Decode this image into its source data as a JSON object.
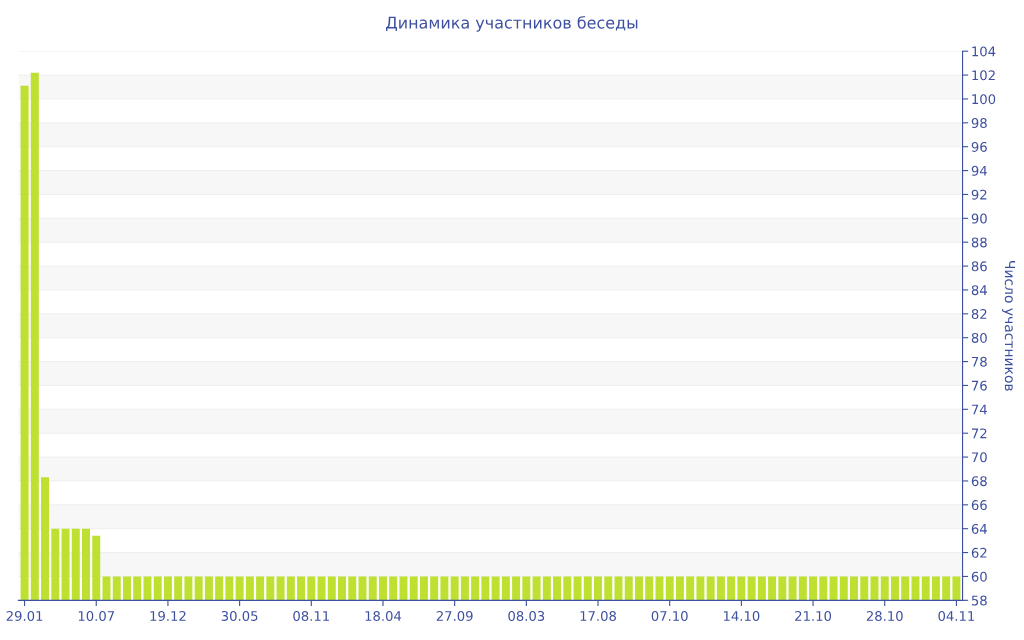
{
  "chart_data": {
    "type": "bar",
    "title": "Динамика участников беседы",
    "ylabel": "Число участников",
    "categories": [
      "29.01",
      null,
      null,
      null,
      null,
      null,
      null,
      "10.07",
      null,
      null,
      null,
      null,
      null,
      null,
      "19.12",
      null,
      null,
      null,
      null,
      null,
      null,
      "30.05",
      null,
      null,
      null,
      null,
      null,
      null,
      "08.11",
      null,
      null,
      null,
      null,
      null,
      null,
      "18.04",
      null,
      null,
      null,
      null,
      null,
      null,
      "27.09",
      null,
      null,
      null,
      null,
      null,
      null,
      "08.03",
      null,
      null,
      null,
      null,
      null,
      null,
      "17.08",
      null,
      null,
      null,
      null,
      null,
      null,
      "07.10",
      null,
      null,
      null,
      null,
      null,
      null,
      "14.10",
      null,
      null,
      null,
      null,
      null,
      null,
      "21.10",
      null,
      null,
      null,
      null,
      null,
      null,
      "28.10",
      null,
      null,
      null,
      null,
      null,
      null,
      "04.11"
    ],
    "values": [
      101.1,
      102.2,
      68.3,
      64,
      64,
      64,
      64,
      63.4,
      60,
      60,
      60,
      60,
      60,
      60,
      60,
      60,
      60,
      60,
      60,
      60,
      60,
      60,
      60,
      60,
      60,
      60,
      60,
      60,
      60,
      60,
      60,
      60,
      60,
      60,
      60,
      60,
      60,
      60,
      60,
      60,
      60,
      60,
      60,
      60,
      60,
      60,
      60,
      60,
      60,
      60,
      60,
      60,
      60,
      60,
      60,
      60,
      60,
      60,
      60,
      60,
      60,
      60,
      60,
      60,
      60,
      60,
      60,
      60,
      60,
      60,
      60,
      60,
      60,
      60,
      60,
      60,
      60,
      60,
      60,
      60,
      60,
      60,
      60,
      60,
      60,
      60,
      60,
      60,
      60,
      60,
      60,
      60
    ],
    "color": "#bde031",
    "ylim": [
      58,
      104
    ],
    "yticks": [
      58,
      60,
      62,
      64,
      66,
      68,
      70,
      72,
      74,
      76,
      78,
      80,
      82,
      84,
      86,
      88,
      90,
      92,
      94,
      96,
      98,
      100,
      102,
      104
    ],
    "grid": "y",
    "legend": false
  }
}
